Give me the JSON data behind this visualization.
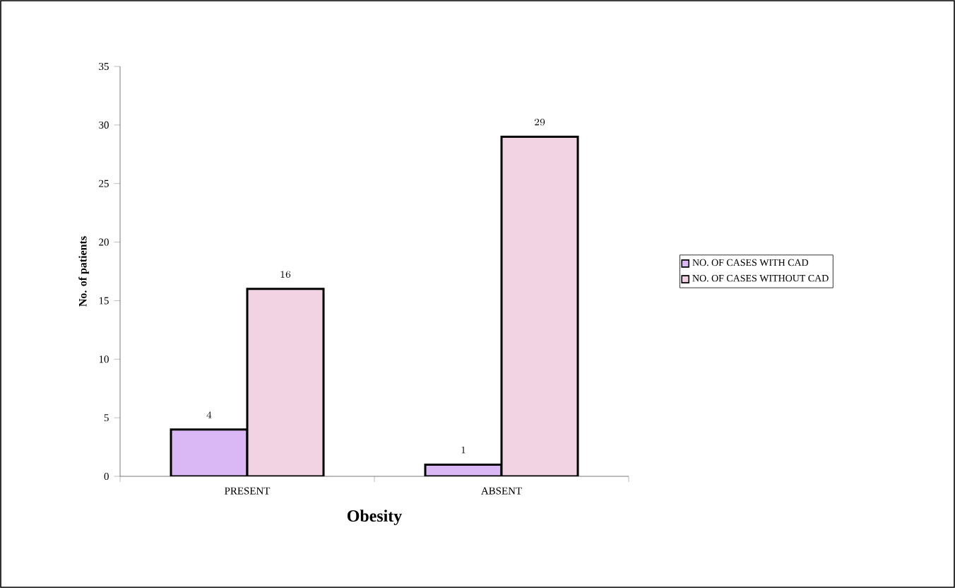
{
  "chart_data": {
    "type": "bar",
    "xlabel": "Obesity",
    "ylabel": "No. of patients",
    "categories": [
      "PRESENT",
      "ABSENT"
    ],
    "series": [
      {
        "name": "NO. OF CASES WITH CAD",
        "color": "#d9b8f5",
        "values": [
          4,
          1
        ]
      },
      {
        "name": "NO. OF CASES WITHOUT CAD",
        "color": "#f2d3e3",
        "values": [
          16,
          29
        ]
      }
    ],
    "ylim": [
      0,
      35
    ],
    "yticks": [
      0,
      5,
      10,
      15,
      20,
      25,
      30,
      35
    ],
    "data_labels": true,
    "legend": "right",
    "grid": false
  }
}
